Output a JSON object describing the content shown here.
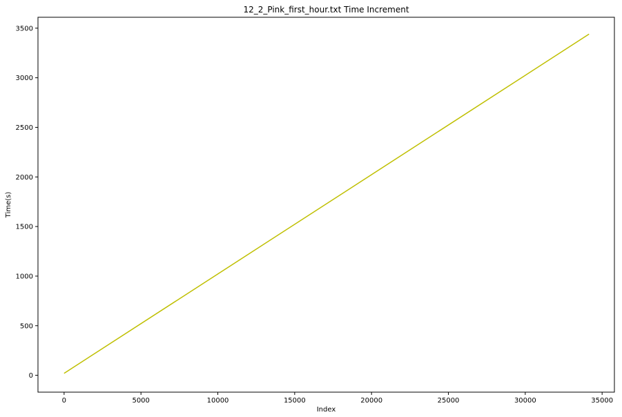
{
  "chart_data": {
    "type": "line",
    "title": "12_2_Pink_first_hour.txt  Time Increment",
    "xlabel": "Index",
    "ylabel": "Time(s)",
    "xlim": [
      -1700,
      35800
    ],
    "ylim": [
      -170,
      3610
    ],
    "xticks": [
      0,
      5000,
      10000,
      15000,
      20000,
      25000,
      30000,
      35000
    ],
    "yticks": [
      0,
      500,
      1000,
      1500,
      2000,
      2500,
      3000,
      3500
    ],
    "grid": false,
    "legend": "none",
    "series": [
      {
        "color": "#bfbf00",
        "x": [
          0,
          34150
        ],
        "y": [
          20,
          3440
        ]
      }
    ]
  }
}
